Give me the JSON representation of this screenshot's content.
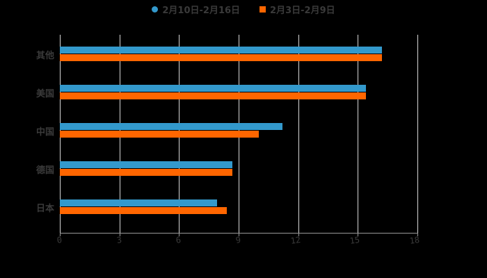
{
  "legend": [
    {
      "label": "2月10日-2月16日",
      "color": "#3399cc",
      "shape": "circle"
    },
    {
      "label": "2月3日-2月9日",
      "color": "#ff6600",
      "shape": "square"
    }
  ],
  "axis": {
    "ticks": [
      "0",
      "3",
      "6",
      "9",
      "12",
      "15",
      "18"
    ]
  },
  "categories": [
    "其他",
    "美国",
    "中国",
    "德国",
    "日本"
  ],
  "chart_data": {
    "type": "bar",
    "orientation": "horizontal",
    "title": "",
    "xlabel": "",
    "ylabel": "",
    "categories": [
      "其他",
      "美国",
      "中国",
      "德国",
      "日本"
    ],
    "series": [
      {
        "name": "2月10日-2月16日",
        "color": "#3399cc",
        "values": [
          16.2,
          15.4,
          11.2,
          8.7,
          7.9
        ]
      },
      {
        "name": "2月3日-2月9日",
        "color": "#ff6600",
        "values": [
          16.2,
          15.4,
          10.0,
          8.7,
          8.4
        ]
      }
    ],
    "xlim": [
      0,
      18
    ],
    "xticks": [
      0,
      3,
      6,
      9,
      12,
      15,
      18
    ],
    "grid": true,
    "legend_position": "top"
  }
}
